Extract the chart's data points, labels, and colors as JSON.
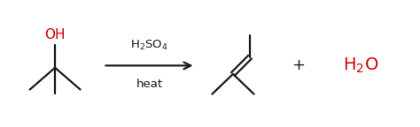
{
  "bg_color": "#ffffff",
  "red_color": "#cc0000",
  "black_color": "#1a1a1a",
  "reagent_text": "H$_2$SO$_4$",
  "condition_text": "heat",
  "plus_text": "+",
  "water_text": "H$_2$O",
  "figsize": [
    4.74,
    1.44
  ],
  "dpi": 100
}
